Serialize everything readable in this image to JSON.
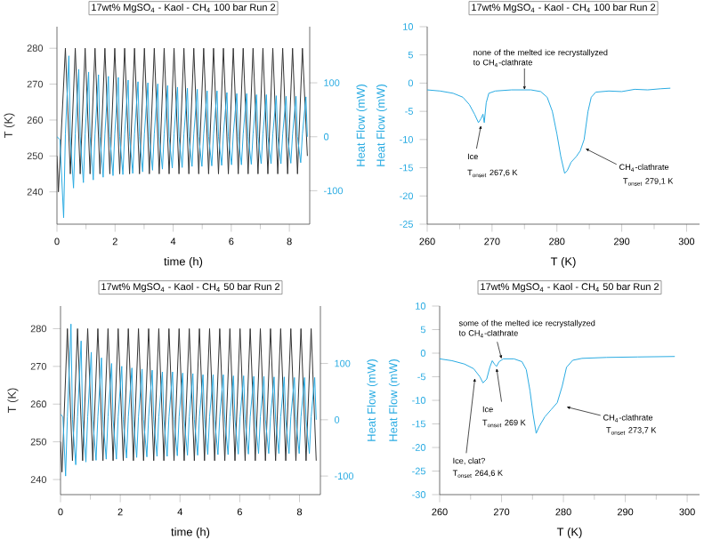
{
  "chart_data": [
    {
      "type": "line",
      "title": "17wt% MgSO$_{4}$ - Kaol - CH$_{4}$ 100 bar Run 2",
      "xlabel": "time (h)",
      "ylabel": "T (K)",
      "y2label": "Heat Flow (mW)",
      "xlim": [
        0,
        8.7
      ],
      "xticks": [
        0,
        2,
        4,
        6,
        8
      ],
      "ylim": [
        231,
        286
      ],
      "yticks": [
        240,
        250,
        260,
        270,
        280
      ],
      "y2lim": [
        -162,
        204
      ],
      "y2ticks": [
        -100,
        0,
        100
      ],
      "series": [
        {
          "color": "#333333",
          "x": [
            0,
            0.05,
            0.29,
            0.46,
            0.63,
            0.8,
            0.97,
            1.14,
            1.31,
            1.48,
            1.65,
            1.82,
            1.99,
            2.16,
            2.33,
            2.5,
            2.67,
            2.84,
            3.01,
            3.18,
            3.35,
            3.52,
            3.69,
            3.86,
            4.03,
            4.2,
            4.37,
            4.54,
            4.71,
            4.88,
            5.05,
            5.22,
            5.39,
            5.56,
            5.73,
            5.9,
            6.07,
            6.24,
            6.41,
            6.58,
            6.75,
            6.92,
            7.09,
            7.26,
            7.43,
            7.6,
            7.77,
            7.94,
            8.11,
            8.28,
            8.45,
            8.62
          ],
          "values": [
            250,
            240,
            280,
            245,
            280,
            245,
            280,
            245,
            280,
            245,
            280,
            245,
            280,
            245,
            280,
            245,
            280,
            245,
            280,
            245,
            280,
            245,
            280,
            245,
            280,
            245,
            280,
            245,
            280,
            245,
            280,
            245,
            280,
            245,
            280,
            245,
            280,
            245,
            280,
            245,
            280,
            245,
            280,
            245,
            280,
            245,
            280,
            245,
            280,
            245,
            280,
            250
          ]
        },
        {
          "color": "#29abe2",
          "axis": "y2",
          "x": [
            0,
            0.1,
            0.23,
            0.29,
            0.41,
            0.46,
            0.57,
            0.63,
            0.75,
            0.8,
            0.91,
            0.97,
            1.09,
            1.14,
            1.25,
            1.31,
            1.43,
            1.48,
            1.59,
            1.65,
            1.77,
            1.82,
            1.93,
            1.99,
            2.11,
            2.16,
            2.27,
            2.33,
            2.45,
            2.5,
            2.61,
            2.67,
            2.79,
            2.84,
            2.95,
            3.01,
            3.13,
            3.18,
            3.29,
            3.35,
            3.47,
            3.52,
            3.63,
            3.69,
            3.81,
            3.86,
            3.97,
            4.03,
            4.15,
            4.2,
            4.31,
            4.37,
            4.49,
            4.54,
            4.65,
            4.71,
            4.83,
            4.88,
            4.99,
            5.05,
            5.17,
            5.22,
            5.33,
            5.39,
            5.51,
            5.56,
            5.67,
            5.73,
            5.85,
            5.9,
            6.01,
            6.07,
            6.19,
            6.24,
            6.35,
            6.41,
            6.53,
            6.58,
            6.69,
            6.75,
            6.87,
            6.92,
            7.03,
            7.09,
            7.21,
            7.26,
            7.37,
            7.43,
            7.55,
            7.6,
            7.71,
            7.77,
            7.89,
            7.94,
            8.05,
            8.11,
            8.23,
            8.28,
            8.39,
            8.45,
            8.57,
            8.62
          ],
          "values": [
            0,
            -5,
            -150,
            5,
            150,
            0,
            -95,
            5,
            125,
            0,
            -85,
            5,
            120,
            0,
            -80,
            5,
            115,
            0,
            -75,
            5,
            112,
            0,
            -72,
            5,
            110,
            0,
            -70,
            5,
            105,
            0,
            -68,
            5,
            102,
            0,
            -65,
            5,
            100,
            0,
            -62,
            5,
            98,
            0,
            -60,
            5,
            95,
            0,
            -58,
            5,
            92,
            0,
            -57,
            5,
            90,
            0,
            -55,
            5,
            88,
            0,
            -55,
            5,
            85,
            0,
            -54,
            5,
            85,
            0,
            -53,
            5,
            82,
            0,
            -52,
            5,
            80,
            0,
            -52,
            5,
            80,
            0,
            -51,
            5,
            78,
            0,
            -50,
            5,
            78,
            0,
            -50,
            5,
            76,
            0,
            -50,
            5,
            75,
            0,
            -49,
            5,
            75,
            0,
            -48,
            5,
            74,
            0
          ]
        }
      ]
    },
    {
      "type": "line",
      "title": "17wt% MgSO$_{4}$ - Kaol - CH$_{4}$ 100 bar Run 2",
      "xlabel": "T (K)",
      "ylabel": "Heat Flow (mW)",
      "xlim": [
        260,
        302
      ],
      "xticks": [
        260,
        270,
        280,
        290,
        300
      ],
      "ylim": [
        -25,
        10
      ],
      "yticks": [
        -25,
        -20,
        -15,
        -10,
        -5,
        0,
        5,
        10
      ],
      "series": [
        {
          "color": "#29abe2",
          "x": [
            260,
            262,
            264,
            265.5,
            266.5,
            267.3,
            267.9,
            268.3,
            268.6,
            268.8,
            269.1,
            269.5,
            270.5,
            273,
            276,
            277.5,
            278.5,
            279.3,
            280,
            280.6,
            281.2,
            281.6,
            282.2,
            283,
            283.6,
            284.2,
            284.8,
            285.3,
            286,
            288,
            290,
            292,
            294,
            296,
            297.5
          ],
          "values": [
            -1.2,
            -1.4,
            -1.8,
            -2.5,
            -3.8,
            -5.5,
            -7,
            -6.3,
            -5.5,
            -7,
            -3.5,
            -1.8,
            -1.4,
            -1.2,
            -1.2,
            -1.5,
            -2.5,
            -5,
            -9,
            -13,
            -16,
            -15.5,
            -14,
            -13,
            -12,
            -10,
            -5,
            -2.5,
            -1.6,
            -1.4,
            -1.5,
            -1.1,
            -1.2,
            -1.0,
            -0.9
          ]
        }
      ],
      "annotations": [
        {
          "text": "none of the melted ice recrystallyzed to CH$_{4}$-clathrate",
          "x": 275,
          "y": -1.2
        },
        {
          "text": "Ice",
          "x": 268.3,
          "y": -7.5
        },
        "T$_{onset}$ 267,6 K",
        {
          "text": "CH$_{4}$-clathrate",
          "x": 284.4,
          "y": -11.6
        },
        "T$_{onset}$ 279,1 K"
      ]
    },
    {
      "type": "line",
      "title": "17wt% MgSO$_{4}$ - Kaol - CH$_{4}$ 50 bar Run 2",
      "xlabel": "time (h)",
      "ylabel": "T (K)",
      "y2label": "Heat Flow (mW)",
      "xlim": [
        0,
        8.7
      ],
      "xticks": [
        0,
        2,
        4,
        6,
        8
      ],
      "ylim": [
        236,
        286
      ],
      "yticks": [
        240,
        250,
        260,
        270,
        280
      ],
      "y2lim": [
        -133,
        202
      ],
      "y2ticks": [
        -100,
        0,
        100
      ],
      "series": [
        {
          "color": "#333333",
          "x": [
            0,
            0.05,
            0.23,
            0.4,
            0.57,
            0.74,
            0.91,
            1.08,
            1.25,
            1.42,
            1.59,
            1.76,
            1.93,
            2.1,
            2.27,
            2.44,
            2.61,
            2.78,
            2.95,
            3.12,
            3.29,
            3.46,
            3.63,
            3.8,
            3.97,
            4.14,
            4.31,
            4.48,
            4.65,
            4.82,
            4.99,
            5.16,
            5.33,
            5.5,
            5.67,
            5.84,
            6.01,
            6.18,
            6.35,
            6.52,
            6.69,
            6.86,
            7.03,
            7.2,
            7.37,
            7.54,
            7.71,
            7.88,
            8.05,
            8.22,
            8.39,
            8.56
          ],
          "values": [
            250,
            242,
            280,
            245,
            280,
            245,
            280,
            245,
            280,
            245,
            280,
            245,
            280,
            245,
            280,
            245,
            280,
            245,
            280,
            245,
            280,
            245,
            280,
            245,
            280,
            245,
            280,
            245,
            280,
            245,
            280,
            245,
            280,
            245,
            280,
            245,
            280,
            245,
            280,
            245,
            280,
            245,
            280,
            245,
            280,
            245,
            280,
            245,
            280,
            245,
            280,
            245
          ]
        },
        {
          "color": "#29abe2",
          "axis": "y2",
          "x": [
            0,
            0.08,
            0.17,
            0.23,
            0.35,
            0.4,
            0.51,
            0.57,
            0.69,
            0.74,
            0.85,
            0.91,
            1.03,
            1.08,
            1.19,
            1.25,
            1.37,
            1.42,
            1.53,
            1.59,
            1.71,
            1.76,
            1.87,
            1.93,
            2.05,
            2.1,
            2.21,
            2.27,
            2.39,
            2.44,
            2.55,
            2.61,
            2.73,
            2.78,
            2.89,
            2.95,
            3.07,
            3.12,
            3.23,
            3.29,
            3.41,
            3.46,
            3.57,
            3.63,
            3.75,
            3.8,
            3.91,
            3.97,
            4.09,
            4.14,
            4.25,
            4.31,
            4.43,
            4.48,
            4.59,
            4.65,
            4.77,
            4.82,
            4.93,
            4.99,
            5.11,
            5.16,
            5.27,
            5.33,
            5.45,
            5.5,
            5.61,
            5.67,
            5.79,
            5.84,
            5.95,
            6.01,
            6.13,
            6.18,
            6.29,
            6.35,
            6.47,
            6.52,
            6.63,
            6.69,
            6.81,
            6.86,
            6.97,
            7.03,
            7.15,
            7.2,
            7.31,
            7.37,
            7.49,
            7.54,
            7.65,
            7.71,
            7.83,
            7.88,
            7.99,
            8.05,
            8.17,
            8.22,
            8.33,
            8.39,
            8.51,
            8.56
          ],
          "values": [
            10,
            5,
            -100,
            5,
            170,
            0,
            -80,
            5,
            140,
            0,
            -75,
            5,
            120,
            0,
            -72,
            5,
            110,
            0,
            -70,
            5,
            100,
            0,
            -70,
            5,
            95,
            0,
            -68,
            5,
            92,
            0,
            -67,
            5,
            90,
            0,
            -66,
            5,
            88,
            0,
            -65,
            5,
            85,
            0,
            -65,
            5,
            85,
            0,
            -64,
            5,
            83,
            0,
            -63,
            5,
            82,
            0,
            -63,
            5,
            80,
            0,
            -62,
            5,
            80,
            0,
            -62,
            5,
            80,
            0,
            -62,
            5,
            78,
            0,
            -61,
            5,
            78,
            0,
            -61,
            5,
            77,
            0,
            -60,
            5,
            77,
            0,
            -60,
            5,
            76,
            0,
            -60,
            5,
            76,
            0,
            -60,
            5,
            75,
            0,
            -60,
            5,
            75,
            0,
            -60,
            5,
            75,
            0
          ]
        }
      ]
    },
    {
      "type": "line",
      "title": "17wt% MgSO$_{4}$ - Kaol - CH$_{4}$ 50 bar Run 2",
      "xlabel": "T (K)",
      "ylabel": "Heat Flow (mW)",
      "xlim": [
        260,
        302
      ],
      "xticks": [
        260,
        270,
        280,
        290,
        300
      ],
      "ylim": [
        -30,
        10
      ],
      "yticks": [
        -30,
        -25,
        -20,
        -15,
        -10,
        -5,
        0,
        5,
        10
      ],
      "series": [
        {
          "color": "#29abe2",
          "x": [
            260,
            262,
            264,
            265.5,
            266.5,
            267,
            267.6,
            268.1,
            268.5,
            268.9,
            269.2,
            269.6,
            270.3,
            272,
            273.3,
            274,
            274.6,
            275.1,
            275.6,
            276.1,
            277,
            278,
            279,
            279.8,
            280.5,
            281.5,
            283,
            287,
            292,
            298
          ],
          "values": [
            -1.2,
            -1.6,
            -2.3,
            -3.3,
            -5,
            -6.3,
            -5.5,
            -3,
            -1.6,
            -2.4,
            -2.8,
            -1.8,
            -1.2,
            -1.2,
            -1.8,
            -3.5,
            -8,
            -13,
            -17,
            -15.5,
            -13.5,
            -12,
            -10.5,
            -7,
            -3,
            -1.5,
            -1.1,
            -0.9,
            -0.8,
            -0.7
          ]
        }
      ],
      "annotations": [
        {
          "text": "some of the melted ice recrystallyzed to CH$_{4}$-clathrate",
          "x": 270,
          "y": -1.2
        },
        {
          "text": "Ice",
          "x": 269.2,
          "y": -3.2
        },
        "T$_{onset}$ 269 K",
        {
          "text": "CH$_{4}$-clathrate",
          "x": 280.5,
          "y": -11.4
        },
        "T$_{onset}$ 273,7 K",
        {
          "text": "Ice, clat?",
          "x": 265.7,
          "y": -5.3
        },
        "T$_{onset}$ 264,6 K"
      ]
    }
  ]
}
